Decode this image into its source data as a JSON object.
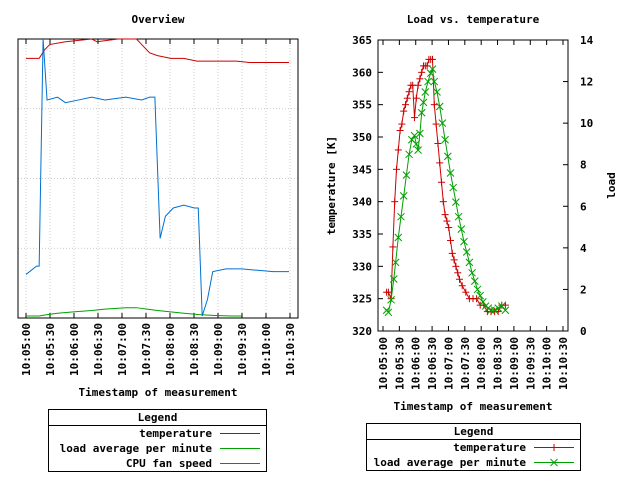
{
  "chart_data": [
    {
      "type": "line",
      "title": "Overview",
      "xlabel": "Timestamp of measurement",
      "ylabel": "",
      "x_ticks": [
        "10:05:00",
        "10:05:30",
        "10:06:00",
        "10:06:30",
        "10:07:00",
        "10:07:30",
        "10:08:00",
        "10:08:30",
        "10:09:00",
        "10:09:30",
        "10:10:00",
        "10:10:30"
      ],
      "y_ticks": [],
      "grid": true,
      "legend": {
        "title": "Legend",
        "placement": "below"
      },
      "series": [
        {
          "name": "temperature",
          "color": "#cc0000",
          "points": [
            [
              0,
              0.93
            ],
            [
              0.05,
              0.93
            ],
            [
              0.07,
              0.96
            ],
            [
              0.09,
              0.98
            ],
            [
              0.15,
              0.99
            ],
            [
              0.25,
              1.0
            ],
            [
              0.27,
              0.99
            ],
            [
              0.35,
              1.0
            ],
            [
              0.42,
              1.0
            ],
            [
              0.44,
              0.98
            ],
            [
              0.47,
              0.95
            ],
            [
              0.5,
              0.94
            ],
            [
              0.55,
              0.93
            ],
            [
              0.6,
              0.93
            ],
            [
              0.65,
              0.92
            ],
            [
              0.7,
              0.92
            ],
            [
              0.75,
              0.92
            ],
            [
              0.8,
              0.92
            ],
            [
              0.85,
              0.915
            ],
            [
              0.9,
              0.915
            ],
            [
              0.95,
              0.915
            ],
            [
              1.0,
              0.915
            ]
          ]
        },
        {
          "name": "load average per minute",
          "color": "#00a000",
          "points": [
            [
              0,
              0.0
            ],
            [
              0.05,
              0.0
            ],
            [
              0.08,
              0.005
            ],
            [
              0.12,
              0.01
            ],
            [
              0.18,
              0.015
            ],
            [
              0.25,
              0.02
            ],
            [
              0.3,
              0.025
            ],
            [
              0.38,
              0.03
            ],
            [
              0.42,
              0.03
            ],
            [
              0.46,
              0.025
            ],
            [
              0.5,
              0.02
            ],
            [
              0.55,
              0.015
            ],
            [
              0.6,
              0.01
            ],
            [
              0.66,
              0.005
            ],
            [
              0.72,
              0.002
            ],
            [
              0.78,
              0.0
            ],
            [
              0.82,
              0.0
            ]
          ]
        },
        {
          "name": "CPU fan speed",
          "color": "#0070d0",
          "points": [
            [
              0,
              0.15
            ],
            [
              0.04,
              0.18
            ],
            [
              0.05,
              0.18
            ],
            [
              0.065,
              1.0
            ],
            [
              0.08,
              0.78
            ],
            [
              0.12,
              0.79
            ],
            [
              0.15,
              0.77
            ],
            [
              0.2,
              0.78
            ],
            [
              0.25,
              0.79
            ],
            [
              0.3,
              0.78
            ],
            [
              0.38,
              0.79
            ],
            [
              0.44,
              0.78
            ],
            [
              0.47,
              0.79
            ],
            [
              0.49,
              0.79
            ],
            [
              0.51,
              0.28
            ],
            [
              0.53,
              0.36
            ],
            [
              0.56,
              0.39
            ],
            [
              0.6,
              0.4
            ],
            [
              0.64,
              0.39
            ],
            [
              0.655,
              0.39
            ],
            [
              0.67,
              0.0
            ],
            [
              0.69,
              0.06
            ],
            [
              0.71,
              0.16
            ],
            [
              0.76,
              0.17
            ],
            [
              0.82,
              0.17
            ],
            [
              0.88,
              0.165
            ],
            [
              0.94,
              0.16
            ],
            [
              1.0,
              0.16
            ]
          ]
        }
      ]
    },
    {
      "type": "line",
      "title": "Load vs. temperature",
      "xlabel": "Timestamp of measurement",
      "ylabel": "temperature [K]",
      "y2label": "load",
      "x_ticks": [
        "10:05:00",
        "10:05:30",
        "10:06:00",
        "10:06:30",
        "10:07:00",
        "10:07:30",
        "10:08:00",
        "10:08:30",
        "10:09:00",
        "10:09:30",
        "10:10:00",
        "10:10:30"
      ],
      "ylim": [
        320,
        365
      ],
      "y_ticks": [
        "320",
        "325",
        "330",
        "335",
        "340",
        "345",
        "350",
        "355",
        "360",
        "365"
      ],
      "y2lim": [
        0,
        14
      ],
      "y2_ticks": [
        "0",
        "2",
        "4",
        "6",
        "8",
        "10",
        "12",
        "14"
      ],
      "grid": false,
      "legend": {
        "title": "Legend",
        "placement": "below"
      },
      "series": [
        {
          "name": "temperature",
          "axis": "left",
          "color": "#cc0000",
          "marker": "plus",
          "points": [
            [
              0.02,
              326
            ],
            [
              0.03,
              326
            ],
            [
              0.045,
              325
            ],
            [
              0.055,
              333
            ],
            [
              0.065,
              340
            ],
            [
              0.075,
              345
            ],
            [
              0.085,
              348
            ],
            [
              0.095,
              351
            ],
            [
              0.105,
              352
            ],
            [
              0.115,
              354
            ],
            [
              0.125,
              355
            ],
            [
              0.135,
              356
            ],
            [
              0.145,
              357
            ],
            [
              0.155,
              358
            ],
            [
              0.165,
              358
            ],
            [
              0.175,
              353
            ],
            [
              0.185,
              356
            ],
            [
              0.195,
              358
            ],
            [
              0.205,
              359
            ],
            [
              0.215,
              360
            ],
            [
              0.225,
              361
            ],
            [
              0.235,
              361
            ],
            [
              0.245,
              361
            ],
            [
              0.255,
              362
            ],
            [
              0.265,
              362
            ],
            [
              0.275,
              362
            ],
            [
              0.285,
              355
            ],
            [
              0.295,
              352
            ],
            [
              0.305,
              349
            ],
            [
              0.315,
              346
            ],
            [
              0.325,
              343
            ],
            [
              0.335,
              340
            ],
            [
              0.345,
              338
            ],
            [
              0.355,
              337
            ],
            [
              0.365,
              336
            ],
            [
              0.375,
              334
            ],
            [
              0.385,
              332
            ],
            [
              0.395,
              331
            ],
            [
              0.405,
              330
            ],
            [
              0.415,
              329
            ],
            [
              0.425,
              328
            ],
            [
              0.44,
              327
            ],
            [
              0.46,
              326
            ],
            [
              0.48,
              325
            ],
            [
              0.5,
              325
            ],
            [
              0.52,
              325
            ],
            [
              0.54,
              324
            ],
            [
              0.56,
              324
            ],
            [
              0.58,
              323
            ],
            [
              0.6,
              323
            ],
            [
              0.62,
              323
            ],
            [
              0.64,
              323
            ],
            [
              0.66,
              324
            ],
            [
              0.68,
              324
            ]
          ]
        },
        {
          "name": "load average per minute",
          "axis": "right",
          "color": "#00a000",
          "marker": "cross",
          "points": [
            [
              0.02,
              1.0
            ],
            [
              0.03,
              0.9
            ],
            [
              0.045,
              1.5
            ],
            [
              0.06,
              2.5
            ],
            [
              0.07,
              3.3
            ],
            [
              0.085,
              4.5
            ],
            [
              0.1,
              5.5
            ],
            [
              0.115,
              6.5
            ],
            [
              0.13,
              7.5
            ],
            [
              0.145,
              8.5
            ],
            [
              0.16,
              9.2
            ],
            [
              0.175,
              9.4
            ],
            [
              0.185,
              9.0
            ],
            [
              0.195,
              8.7
            ],
            [
              0.205,
              9.5
            ],
            [
              0.215,
              10.5
            ],
            [
              0.225,
              11.0
            ],
            [
              0.235,
              11.5
            ],
            [
              0.25,
              12.0
            ],
            [
              0.265,
              12.4
            ],
            [
              0.275,
              12.6
            ],
            [
              0.285,
              12.0
            ],
            [
              0.3,
              11.5
            ],
            [
              0.315,
              10.8
            ],
            [
              0.33,
              10.0
            ],
            [
              0.345,
              9.2
            ],
            [
              0.36,
              8.4
            ],
            [
              0.375,
              7.6
            ],
            [
              0.39,
              6.9
            ],
            [
              0.405,
              6.2
            ],
            [
              0.42,
              5.5
            ],
            [
              0.435,
              4.9
            ],
            [
              0.45,
              4.3
            ],
            [
              0.465,
              3.8
            ],
            [
              0.48,
              3.3
            ],
            [
              0.495,
              2.8
            ],
            [
              0.51,
              2.4
            ],
            [
              0.525,
              2.0
            ],
            [
              0.54,
              1.7
            ],
            [
              0.555,
              1.4
            ],
            [
              0.57,
              1.2
            ],
            [
              0.585,
              1.1
            ],
            [
              0.6,
              1.0
            ],
            [
              0.62,
              1.0
            ],
            [
              0.64,
              1.1
            ],
            [
              0.66,
              1.2
            ],
            [
              0.68,
              1.0
            ]
          ]
        }
      ]
    }
  ]
}
